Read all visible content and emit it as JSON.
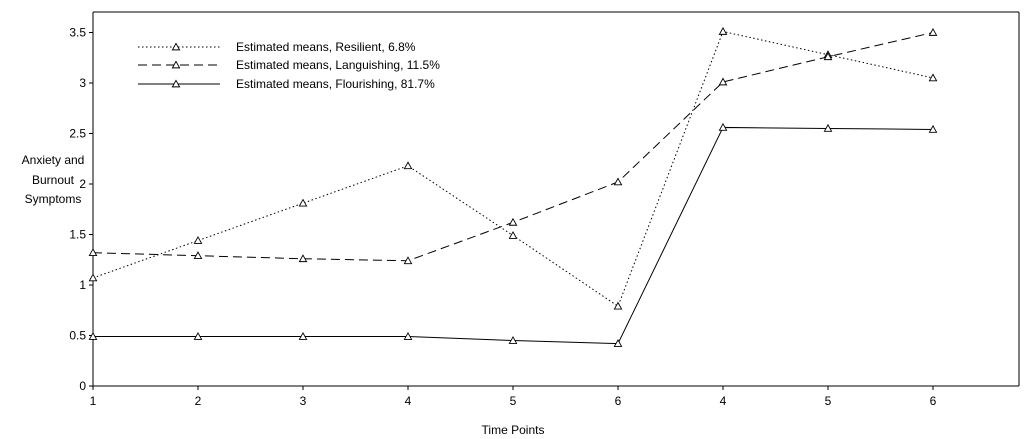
{
  "chart_data": {
    "type": "line",
    "title": "",
    "xlabel": "Time Points",
    "ylabel_lines": [
      "Anxiety and",
      "Burnout",
      "Symptoms"
    ],
    "x_tick_labels": [
      "1",
      "2",
      "3",
      "4",
      "5",
      "6",
      "4",
      "5",
      "6"
    ],
    "y_ticks": [
      0,
      0.5,
      1,
      1.5,
      2,
      2.5,
      3,
      3.5
    ],
    "y_tick_labels": [
      "0",
      "0.5",
      "1",
      "1.5",
      "2",
      "2.5",
      "3",
      "3.5"
    ],
    "ylim": [
      0,
      3.65
    ],
    "grid": false,
    "legend_position": "top-left",
    "series": [
      {
        "name": "Estimated means, Resilient, 6.8%",
        "line_style": "dotted",
        "marker": "triangle",
        "values": [
          1.07,
          1.44,
          1.81,
          2.18,
          1.49,
          0.79,
          3.51,
          3.28,
          3.05
        ]
      },
      {
        "name": "Estimated means, Languishing, 11.5%",
        "line_style": "dashed",
        "marker": "triangle",
        "values": [
          1.32,
          1.29,
          1.26,
          1.24,
          1.62,
          2.02,
          3.01,
          3.26,
          3.5
        ]
      },
      {
        "name": "Estimated means, Flourishing, 81.7%",
        "line_style": "solid",
        "marker": "triangle",
        "values": [
          0.49,
          0.49,
          0.49,
          0.49,
          0.45,
          0.42,
          2.56,
          2.55,
          2.54
        ]
      }
    ]
  }
}
